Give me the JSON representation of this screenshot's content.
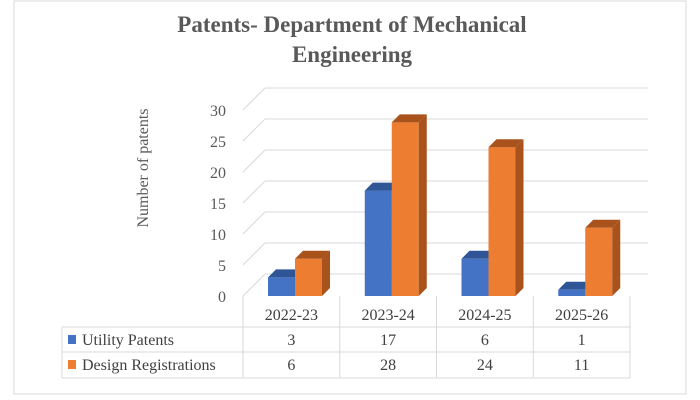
{
  "chart_data": {
    "type": "bar",
    "title_lines": [
      "Patents- Department of Mechanical",
      "Engineering"
    ],
    "ylabel": "Number of patents",
    "xlabel": "",
    "categories": [
      "2022-23",
      "2023-24",
      "2024-25",
      "2025-26"
    ],
    "yticks": [
      "0",
      "5",
      "10",
      "15",
      "20",
      "25",
      "30"
    ],
    "ylim": [
      0,
      30
    ],
    "grid": true,
    "legend": "data-table",
    "series": [
      {
        "name": "Utility Patents",
        "color": "#4472C4",
        "side": "#2F5597",
        "values": [
          3,
          17,
          6,
          1
        ]
      },
      {
        "name": "Design Registrations",
        "color": "#ED7D31",
        "side": "#A9521B",
        "values": [
          6,
          28,
          24,
          11
        ]
      }
    ]
  }
}
